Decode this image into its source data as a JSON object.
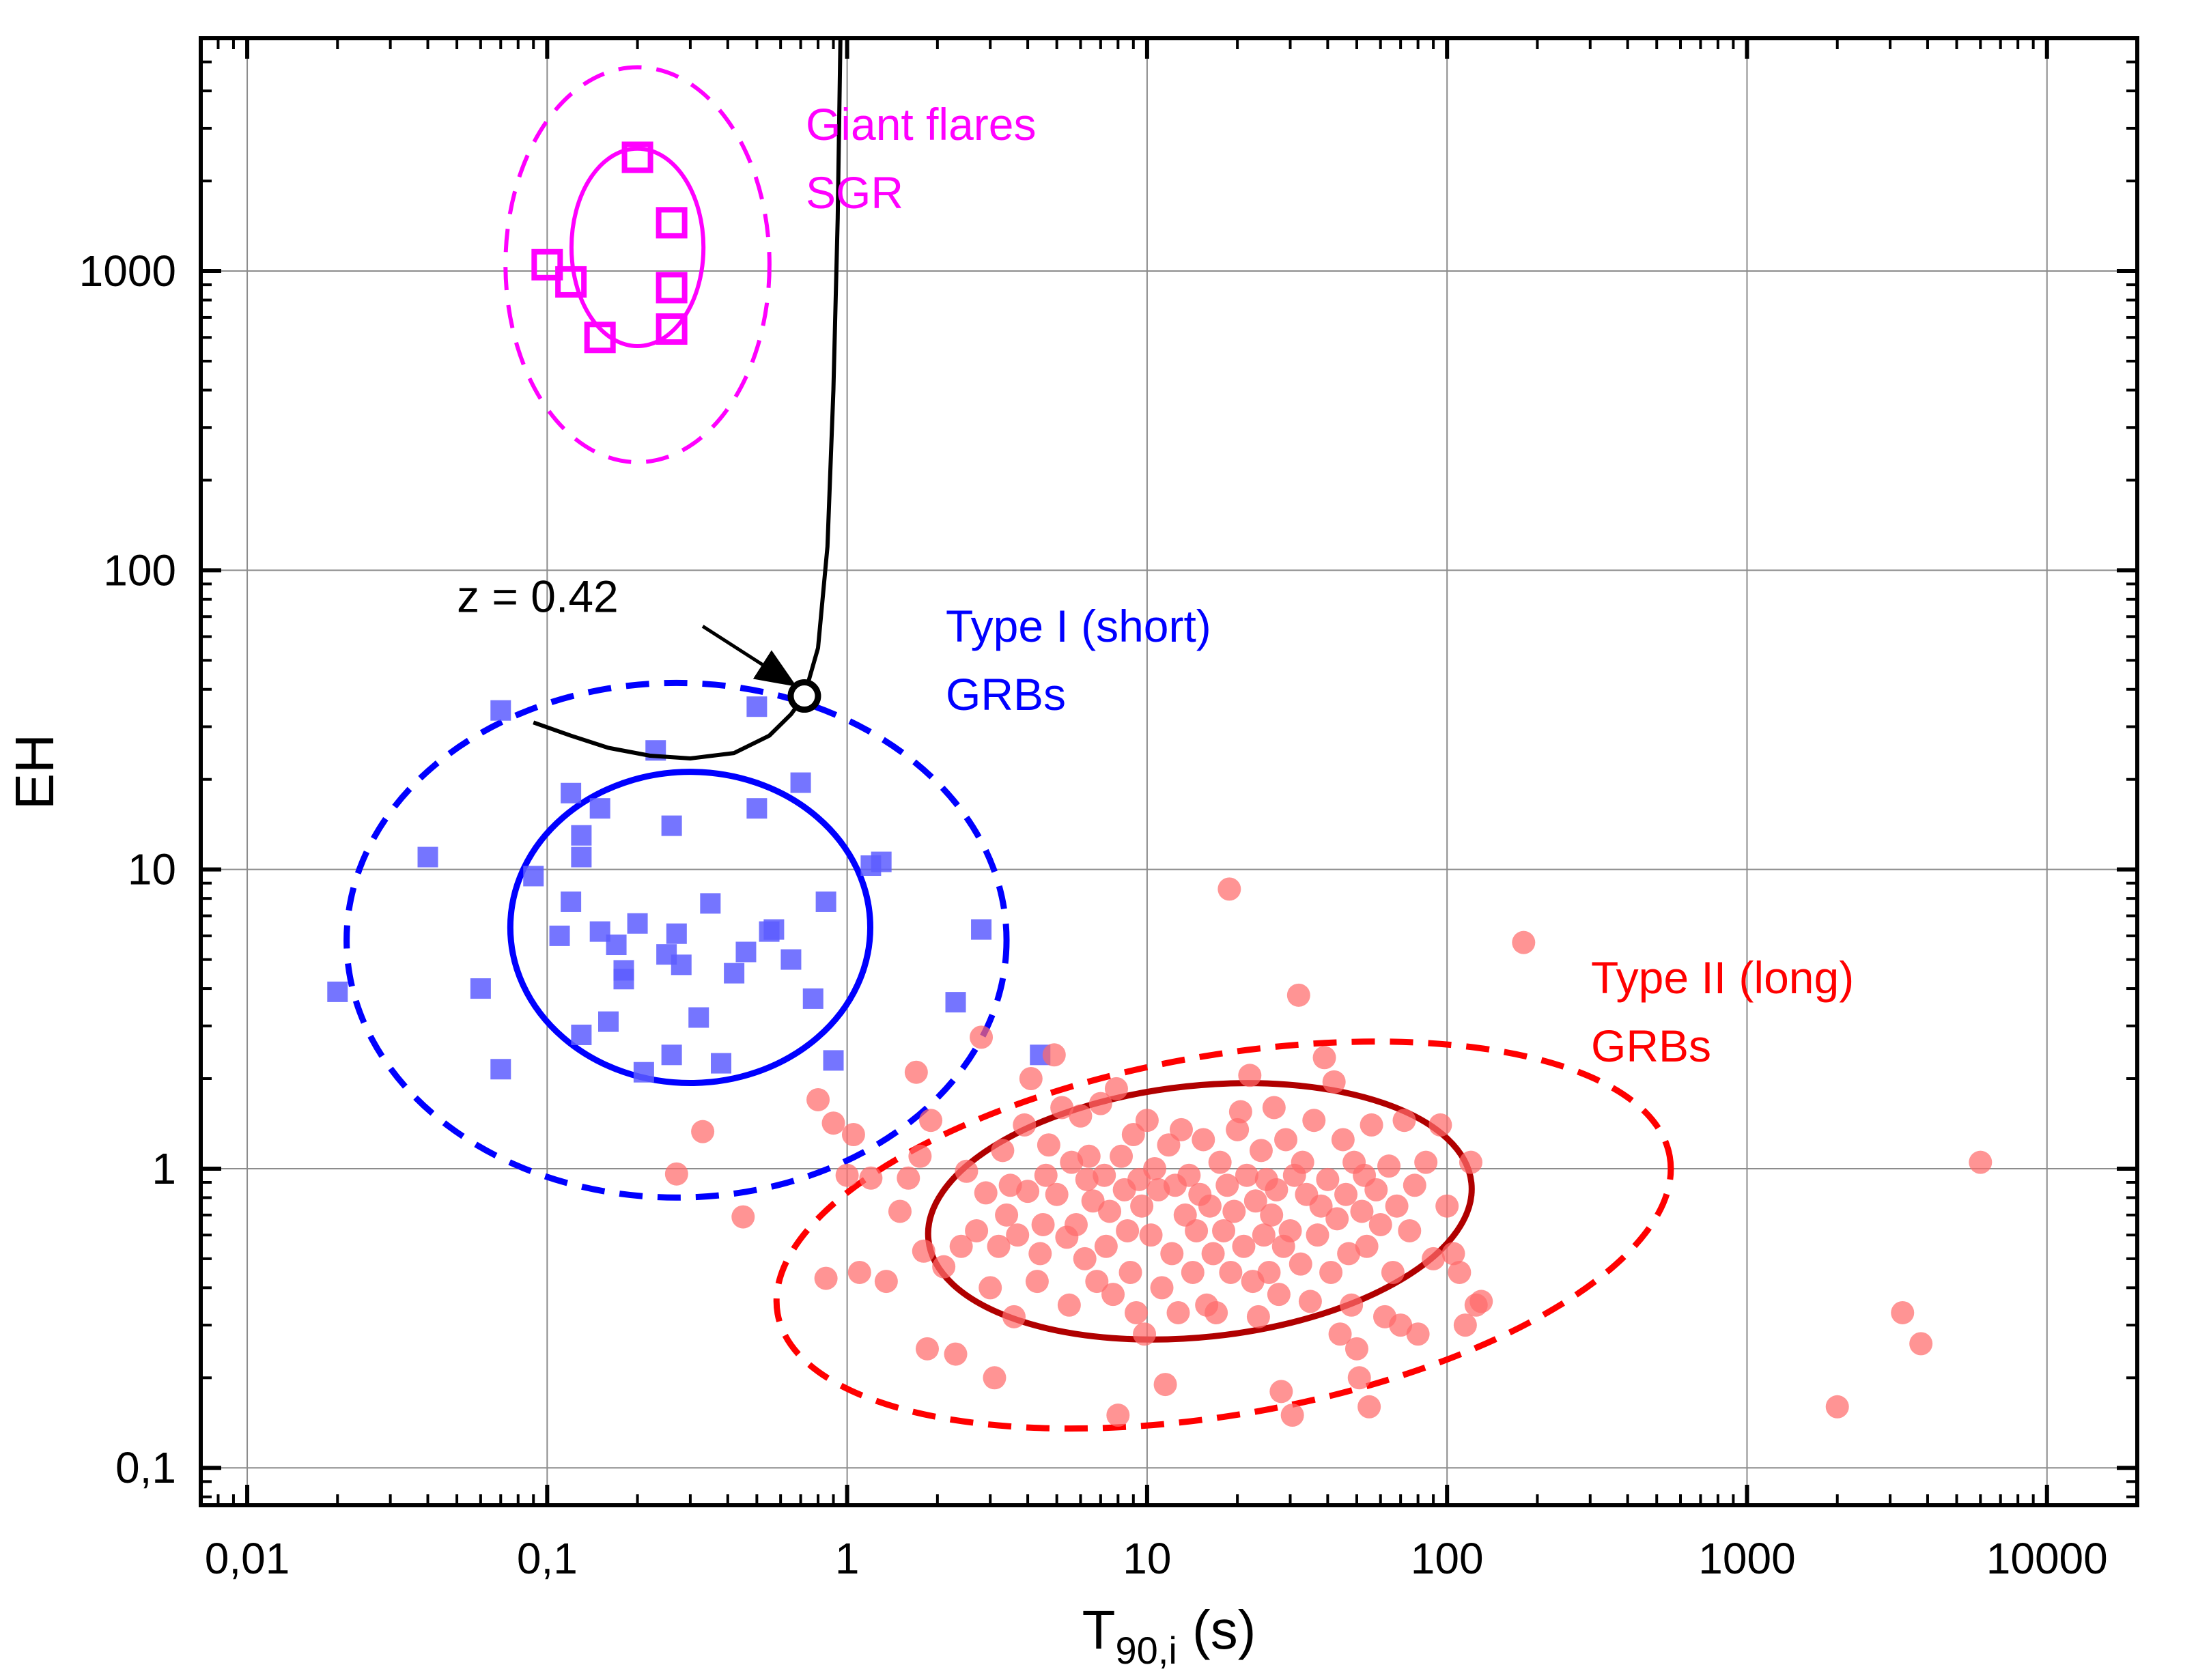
{
  "chart_data": {
    "type": "scatter",
    "xlabel": {
      "main": "T",
      "sub": "90,i",
      "unit": " (s)"
    },
    "ylabel": "EH",
    "x_scale": "log",
    "y_scale": "log",
    "xlim": [
      0.007,
      20000
    ],
    "ylim": [
      0.075,
      6000
    ],
    "grid": true,
    "x_ticks": [
      {
        "value": 0.01,
        "label": "0,01"
      },
      {
        "value": 0.1,
        "label": "0,1"
      },
      {
        "value": 1,
        "label": "1"
      },
      {
        "value": 10,
        "label": "10"
      },
      {
        "value": 100,
        "label": "100"
      },
      {
        "value": 1000,
        "label": "1000"
      },
      {
        "value": 10000,
        "label": "10000"
      }
    ],
    "y_ticks": [
      {
        "value": 0.1,
        "label": "0,1"
      },
      {
        "value": 1,
        "label": "1"
      },
      {
        "value": 10,
        "label": "10"
      },
      {
        "value": 100,
        "label": "100"
      },
      {
        "value": 1000,
        "label": "1000"
      }
    ],
    "annotations": {
      "sgr": [
        "Giant flares",
        "SGR"
      ],
      "type1": [
        "Type I (short)",
        "GRBs"
      ],
      "type2": [
        "Type II (long)",
        "GRBs"
      ],
      "z": "z = 0.42"
    },
    "colors": {
      "sgr": "#ff00ff",
      "type1": "#0000ff",
      "type1_points": "#5d5dff",
      "type2": "#ff0000",
      "type2_points": "#ff6b6b",
      "type2_solid": "#b00000",
      "track": "#000000"
    },
    "series": [
      {
        "marker": "open-square",
        "points": [
          [
            0.2,
            2400
          ],
          [
            0.26,
            1450
          ],
          [
            0.1,
            1050
          ],
          [
            0.12,
            920
          ],
          [
            0.26,
            880
          ],
          [
            0.26,
            640
          ],
          [
            0.15,
            600
          ]
        ]
      },
      {
        "marker": "filled-square",
        "points": [
          [
            0.02,
            3.9
          ],
          [
            0.04,
            11
          ],
          [
            0.06,
            4
          ],
          [
            0.07,
            2.15
          ],
          [
            0.07,
            34
          ],
          [
            0.09,
            9.5
          ],
          [
            0.11,
            6
          ],
          [
            0.12,
            7.8
          ],
          [
            0.12,
            18
          ],
          [
            0.13,
            13
          ],
          [
            0.13,
            11
          ],
          [
            0.13,
            2.8
          ],
          [
            0.15,
            6.2
          ],
          [
            0.15,
            16
          ],
          [
            0.16,
            3.1
          ],
          [
            0.17,
            5.6
          ],
          [
            0.18,
            4.3
          ],
          [
            0.18,
            4.6
          ],
          [
            0.2,
            6.6
          ],
          [
            0.21,
            2.1
          ],
          [
            0.23,
            25
          ],
          [
            0.25,
            5.2
          ],
          [
            0.26,
            2.4
          ],
          [
            0.26,
            14
          ],
          [
            0.27,
            6.1
          ],
          [
            0.28,
            4.8
          ],
          [
            0.32,
            3.2
          ],
          [
            0.35,
            7.7
          ],
          [
            0.38,
            2.25
          ],
          [
            0.42,
            4.5
          ],
          [
            0.46,
            5.3
          ],
          [
            0.5,
            35
          ],
          [
            0.5,
            16
          ],
          [
            0.55,
            6.2
          ],
          [
            0.57,
            6.3
          ],
          [
            0.65,
            5
          ],
          [
            0.7,
            19.5
          ],
          [
            0.77,
            3.7
          ],
          [
            0.85,
            7.8
          ],
          [
            0.9,
            2.3
          ],
          [
            1.2,
            10.3
          ],
          [
            1.3,
            10.6
          ],
          [
            2.3,
            3.6
          ],
          [
            2.8,
            6.3
          ],
          [
            4.4,
            2.4
          ]
        ]
      },
      {
        "marker": "filled-circle",
        "points": [
          [
            0.27,
            0.96
          ],
          [
            0.33,
            1.33
          ],
          [
            0.45,
            0.69
          ],
          [
            0.8,
            1.7
          ],
          [
            0.85,
            0.43
          ],
          [
            0.9,
            1.42
          ],
          [
            1.0,
            0.95
          ],
          [
            1.05,
            1.3
          ],
          [
            1.1,
            0.45
          ],
          [
            1.2,
            0.93
          ],
          [
            1.35,
            0.42
          ],
          [
            1.5,
            0.72
          ],
          [
            1.6,
            0.93
          ],
          [
            1.7,
            2.1
          ],
          [
            1.75,
            1.1
          ],
          [
            1.8,
            0.53
          ],
          [
            1.85,
            0.25
          ],
          [
            1.9,
            1.45
          ],
          [
            2.1,
            0.47
          ],
          [
            2.3,
            0.24
          ],
          [
            2.4,
            0.55
          ],
          [
            2.5,
            0.98
          ],
          [
            2.7,
            0.62
          ],
          [
            2.8,
            2.75
          ],
          [
            2.9,
            0.83
          ],
          [
            3.0,
            0.4
          ],
          [
            3.1,
            0.2
          ],
          [
            3.2,
            0.55
          ],
          [
            3.3,
            1.15
          ],
          [
            3.4,
            0.7
          ],
          [
            3.5,
            0.88
          ],
          [
            3.6,
            0.32
          ],
          [
            3.7,
            0.6
          ],
          [
            3.9,
            1.4
          ],
          [
            4.0,
            0.84
          ],
          [
            4.1,
            2.0
          ],
          [
            4.3,
            0.42
          ],
          [
            4.4,
            0.52
          ],
          [
            4.5,
            0.65
          ],
          [
            4.6,
            0.95
          ],
          [
            4.7,
            1.2
          ],
          [
            4.9,
            2.4
          ],
          [
            5.0,
            0.82
          ],
          [
            5.2,
            1.6
          ],
          [
            5.4,
            0.59
          ],
          [
            5.5,
            0.35
          ],
          [
            5.6,
            1.05
          ],
          [
            5.8,
            0.65
          ],
          [
            6.0,
            1.5
          ],
          [
            6.2,
            0.5
          ],
          [
            6.3,
            0.92
          ],
          [
            6.4,
            1.1
          ],
          [
            6.6,
            0.78
          ],
          [
            6.8,
            0.42
          ],
          [
            7.0,
            1.65
          ],
          [
            7.2,
            0.95
          ],
          [
            7.3,
            0.55
          ],
          [
            7.5,
            0.72
          ],
          [
            7.7,
            0.38
          ],
          [
            7.9,
            1.85
          ],
          [
            8.0,
            0.15
          ],
          [
            8.2,
            1.1
          ],
          [
            8.4,
            0.85
          ],
          [
            8.6,
            0.62
          ],
          [
            8.8,
            0.45
          ],
          [
            9.0,
            1.3
          ],
          [
            9.2,
            0.33
          ],
          [
            9.4,
            0.92
          ],
          [
            9.6,
            0.75
          ],
          [
            9.8,
            0.28
          ],
          [
            10,
            1.45
          ],
          [
            10.3,
            0.6
          ],
          [
            10.6,
            1.0
          ],
          [
            10.9,
            0.85
          ],
          [
            11.2,
            0.4
          ],
          [
            11.5,
            0.19
          ],
          [
            11.8,
            1.2
          ],
          [
            12.1,
            0.52
          ],
          [
            12.4,
            0.88
          ],
          [
            12.7,
            0.33
          ],
          [
            13.0,
            1.35
          ],
          [
            13.4,
            0.7
          ],
          [
            13.8,
            0.95
          ],
          [
            14.2,
            0.45
          ],
          [
            14.6,
            0.62
          ],
          [
            15.0,
            0.82
          ],
          [
            15.4,
            1.25
          ],
          [
            15.8,
            0.35
          ],
          [
            16.2,
            0.75
          ],
          [
            16.6,
            0.52
          ],
          [
            17.0,
            0.33
          ],
          [
            17.5,
            1.05
          ],
          [
            18.0,
            0.62
          ],
          [
            18.5,
            0.88
          ],
          [
            18.8,
            8.6
          ],
          [
            19.0,
            0.45
          ],
          [
            19.5,
            0.72
          ],
          [
            20.0,
            1.35
          ],
          [
            20.5,
            1.55
          ],
          [
            21.0,
            0.55
          ],
          [
            21.5,
            0.95
          ],
          [
            22.0,
            2.05
          ],
          [
            22.5,
            0.42
          ],
          [
            23.0,
            0.78
          ],
          [
            23.5,
            0.32
          ],
          [
            24.0,
            1.15
          ],
          [
            24.5,
            0.6
          ],
          [
            25.0,
            0.92
          ],
          [
            25.5,
            0.45
          ],
          [
            26.0,
            0.7
          ],
          [
            26.5,
            1.6
          ],
          [
            27.0,
            0.85
          ],
          [
            27.5,
            0.38
          ],
          [
            28.0,
            0.18
          ],
          [
            28.5,
            0.55
          ],
          [
            29.0,
            1.25
          ],
          [
            30.0,
            0.62
          ],
          [
            30.5,
            0.15
          ],
          [
            31.0,
            0.95
          ],
          [
            32.0,
            3.8
          ],
          [
            32.5,
            0.48
          ],
          [
            33.0,
            1.05
          ],
          [
            34.0,
            0.82
          ],
          [
            35.0,
            0.36
          ],
          [
            36.0,
            1.45
          ],
          [
            37.0,
            0.6
          ],
          [
            38.0,
            0.75
          ],
          [
            39.0,
            2.35
          ],
          [
            40.0,
            0.92
          ],
          [
            41.0,
            0.45
          ],
          [
            42.0,
            1.95
          ],
          [
            43.0,
            0.68
          ],
          [
            44.0,
            0.28
          ],
          [
            45.0,
            1.25
          ],
          [
            46.0,
            0.82
          ],
          [
            47.0,
            0.52
          ],
          [
            48.0,
            0.35
          ],
          [
            49.0,
            1.05
          ],
          [
            50.0,
            0.25
          ],
          [
            51.0,
            0.2
          ],
          [
            52.0,
            0.72
          ],
          [
            53.0,
            0.95
          ],
          [
            54.0,
            0.55
          ],
          [
            55.0,
            0.16
          ],
          [
            56.0,
            1.4
          ],
          [
            58.0,
            0.85
          ],
          [
            60.0,
            0.65
          ],
          [
            62.0,
            0.32
          ],
          [
            64.0,
            1.02
          ],
          [
            66.0,
            0.45
          ],
          [
            68.0,
            0.75
          ],
          [
            70.0,
            0.3
          ],
          [
            72.0,
            1.45
          ],
          [
            75.0,
            0.62
          ],
          [
            78.0,
            0.88
          ],
          [
            80.0,
            0.28
          ],
          [
            85.0,
            1.05
          ],
          [
            90.0,
            0.5
          ],
          [
            95.0,
            1.4
          ],
          [
            100.0,
            0.75
          ],
          [
            105.0,
            0.52
          ],
          [
            110.0,
            0.45
          ],
          [
            115.0,
            0.3
          ],
          [
            120.0,
            1.05
          ],
          [
            125.0,
            0.35
          ],
          [
            130.0,
            0.36
          ],
          [
            180,
            5.7
          ],
          [
            2000,
            0.16
          ],
          [
            3300,
            0.33
          ],
          [
            3800,
            0.26
          ],
          [
            6000,
            1.05
          ]
        ]
      }
    ],
    "ellipses": [
      {
        "group": "sgr",
        "style": "solid",
        "cx": 0.2,
        "cy": 1200,
        "rx_dex": 0.22,
        "ry_dex": 0.33,
        "angle": 0
      },
      {
        "group": "sgr",
        "style": "dashed",
        "cx": 0.2,
        "cy": 1050,
        "rx_dex": 0.44,
        "ry_dex": 0.66,
        "angle": 0
      },
      {
        "group": "type1",
        "style": "solid",
        "cx": 0.3,
        "cy": 6.4,
        "rx_dex": 0.6,
        "ry_dex": 0.52,
        "angle": 0
      },
      {
        "group": "type1",
        "style": "dashed",
        "cx": 0.27,
        "cy": 5.8,
        "rx_dex": 1.1,
        "ry_dex": 0.86,
        "angle": 0
      },
      {
        "group": "type2",
        "style": "solid",
        "cx": 15,
        "cy": 0.72,
        "rx_dex": 0.91,
        "ry_dex": 0.42,
        "angle": -6
      },
      {
        "group": "type2",
        "style": "dashed",
        "cx": 18,
        "cy": 0.6,
        "rx_dex": 1.51,
        "ry_dex": 0.6,
        "angle": -10
      }
    ],
    "track": {
      "points": [
        [
          0.09,
          31
        ],
        [
          0.12,
          28
        ],
        [
          0.16,
          25.5
        ],
        [
          0.22,
          24
        ],
        [
          0.3,
          23.5
        ],
        [
          0.42,
          24.5
        ],
        [
          0.55,
          28
        ],
        [
          0.65,
          33
        ],
        [
          0.72,
          38
        ],
        [
          0.8,
          55
        ],
        [
          0.86,
          120
        ],
        [
          0.9,
          400
        ],
        [
          0.93,
          1500
        ],
        [
          0.95,
          6000
        ]
      ],
      "marker_point": [
        0.72,
        38
      ],
      "label_pos": [
        0.05,
        85
      ],
      "arrow_from": [
        0.33,
        65
      ],
      "arrow_to": [
        0.65,
        42
      ]
    }
  }
}
